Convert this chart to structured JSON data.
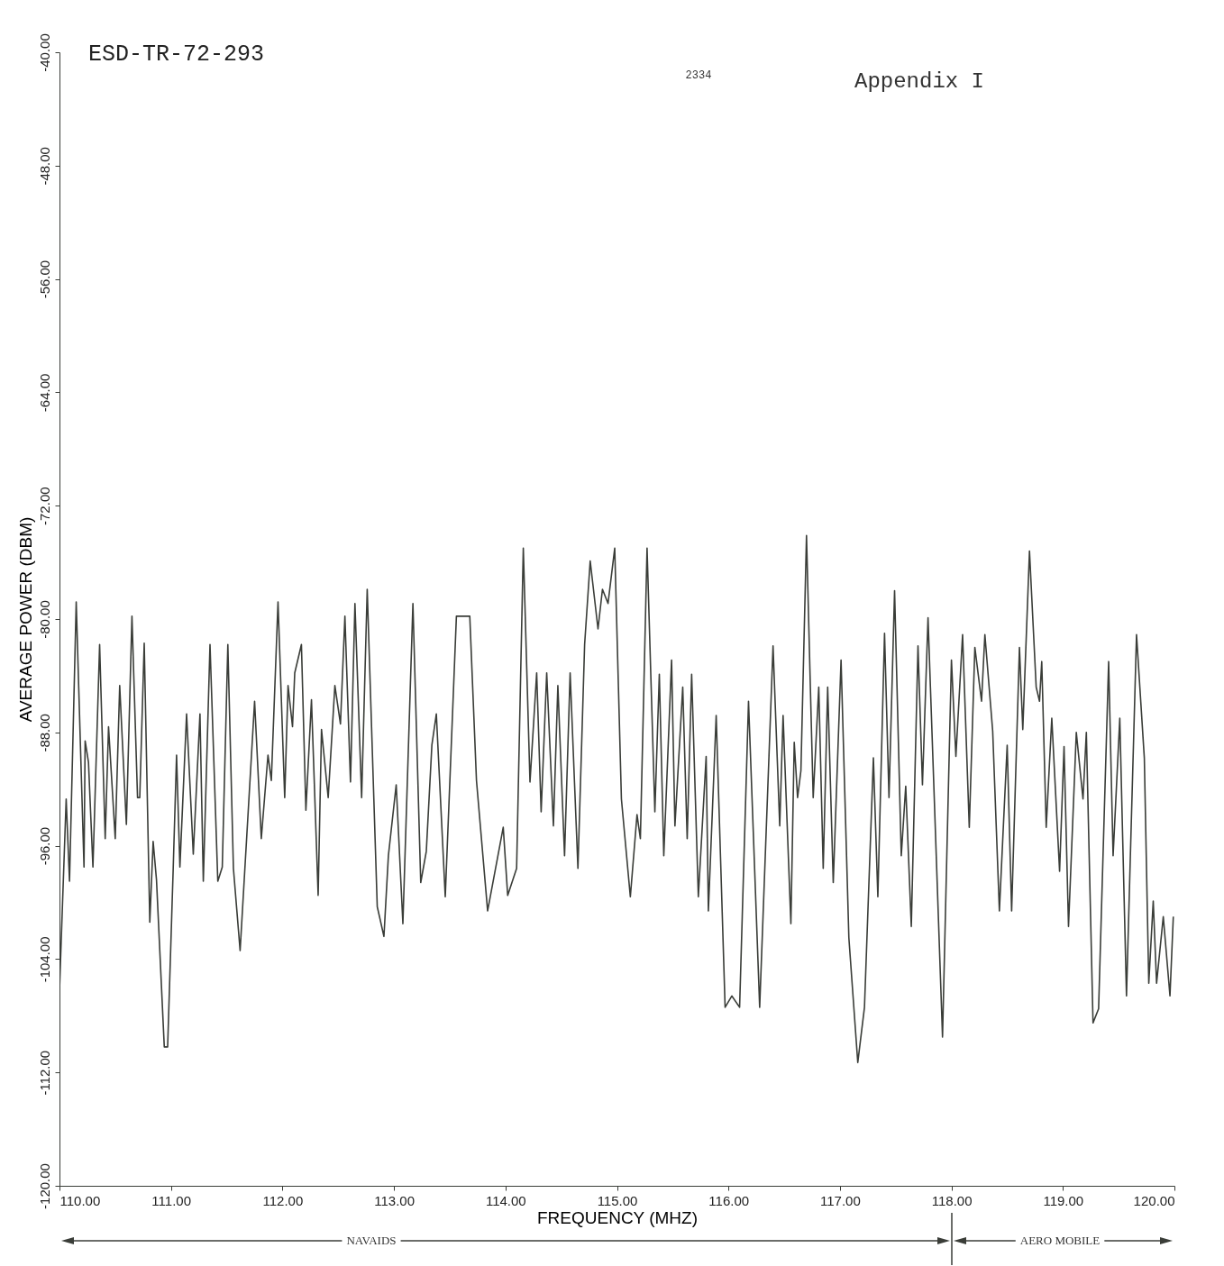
{
  "chart_data": {
    "type": "line",
    "title": "ESD-TR-72-293",
    "xlabel": "FREQUENCY (MHZ)",
    "ylabel": "AVERAGE POWER (DBM)",
    "annotations": [
      "2334",
      "Appendix I",
      "NAVAIDS",
      "AERO MOBILE"
    ],
    "xlim": [
      110,
      120
    ],
    "ylim": [
      -120,
      -40
    ],
    "xticks": [
      {
        "value": 110,
        "label": "110.00"
      },
      {
        "value": 111,
        "label": "111.00"
      },
      {
        "value": 112,
        "label": "112.00"
      },
      {
        "value": 113,
        "label": "113.00"
      },
      {
        "value": 114,
        "label": "114.00"
      },
      {
        "value": 115,
        "label": "115.00"
      },
      {
        "value": 116,
        "label": "116.00"
      },
      {
        "value": 117,
        "label": "117.00"
      },
      {
        "value": 118,
        "label": "118.00"
      },
      {
        "value": 119,
        "label": "119.00"
      },
      {
        "value": 120,
        "label": "120.00"
      }
    ],
    "yticks": [
      {
        "value": -120,
        "label": "-120.00"
      },
      {
        "value": -112,
        "label": "-112.00"
      },
      {
        "value": -104,
        "label": "-104.00"
      },
      {
        "value": -96,
        "label": "-96.00"
      },
      {
        "value": -88,
        "label": "-88.00"
      },
      {
        "value": -80,
        "label": "-80.00"
      },
      {
        "value": -72,
        "label": "-72.00"
      },
      {
        "value": -64,
        "label": "-64.00"
      },
      {
        "value": -56,
        "label": "-56.00"
      },
      {
        "value": -48,
        "label": "-48.00"
      },
      {
        "value": -40,
        "label": "-40.00"
      }
    ],
    "x": [
      110.0,
      110.06,
      110.09,
      110.15,
      110.22,
      110.23,
      110.26,
      110.3,
      110.36,
      110.41,
      110.44,
      110.5,
      110.54,
      110.6,
      110.65,
      110.7,
      110.72,
      110.76,
      110.81,
      110.84,
      110.87,
      110.94,
      110.97,
      111.02,
      111.05,
      111.08,
      111.14,
      111.2,
      111.26,
      111.29,
      111.35,
      111.42,
      111.46,
      111.51,
      111.56,
      111.62,
      111.75,
      111.81,
      111.87,
      111.9,
      111.96,
      112.02,
      112.05,
      112.09,
      112.11,
      112.17,
      112.21,
      112.26,
      112.32,
      112.35,
      112.41,
      112.47,
      112.52,
      112.56,
      112.61,
      112.65,
      112.71,
      112.76,
      112.85,
      112.91,
      112.95,
      113.02,
      113.08,
      113.17,
      113.24,
      113.29,
      113.34,
      113.38,
      113.46,
      113.56,
      113.68,
      113.74,
      113.84,
      113.98,
      114.02,
      114.1,
      114.16,
      114.22,
      114.28,
      114.32,
      114.37,
      114.43,
      114.47,
      114.53,
      114.58,
      114.65,
      114.71,
      114.76,
      114.83,
      114.87,
      114.92,
      114.98,
      115.04,
      115.12,
      115.18,
      115.21,
      115.27,
      115.34,
      115.38,
      115.42,
      115.49,
      115.52,
      115.59,
      115.63,
      115.67,
      115.73,
      115.8,
      115.82,
      115.89,
      115.97,
      116.03,
      116.1,
      116.18,
      116.28,
      116.4,
      116.46,
      116.49,
      116.56,
      116.59,
      116.62,
      116.65,
      116.7,
      116.76,
      116.81,
      116.85,
      116.89,
      116.94,
      117.01,
      117.08,
      117.16,
      117.22,
      117.3,
      117.34,
      117.4,
      117.44,
      117.49,
      117.55,
      117.59,
      117.64,
      117.7,
      117.74,
      117.79,
      117.92,
      118.0,
      118.04,
      118.1,
      118.16,
      118.21,
      118.27,
      118.3,
      118.37,
      118.43,
      118.5,
      118.54,
      118.61,
      118.64,
      118.7,
      118.76,
      118.79,
      118.81,
      118.85,
      118.9,
      118.97,
      119.01,
      119.05,
      119.12,
      119.18,
      119.21,
      119.27,
      119.32,
      119.41,
      119.45,
      119.51,
      119.57,
      119.66,
      119.73,
      119.77,
      119.81,
      119.84,
      119.9,
      119.96,
      119.99
    ],
    "series": [
      {
        "color": "#3a3d38",
        "values": [
          -106.2,
          -92.7,
          -98.5,
          -78.8,
          -97.5,
          -88.6,
          -90.1,
          -97.5,
          -81.8,
          -95.5,
          -87.6,
          -95.5,
          -84.7,
          -94.5,
          -79.8,
          -92.6,
          -92.6,
          -81.7,
          -101.4,
          -95.7,
          -98.4,
          -110.2,
          -110.2,
          -97.6,
          -89.6,
          -97.5,
          -86.7,
          -96.6,
          -86.7,
          -98.5,
          -81.8,
          -98.5,
          -97.5,
          -81.8,
          -97.6,
          -103.4,
          -85.8,
          -95.5,
          -89.6,
          -91.4,
          -78.8,
          -92.6,
          -84.7,
          -87.6,
          -83.8,
          -81.8,
          -93.5,
          -85.7,
          -99.5,
          -87.8,
          -92.6,
          -84.7,
          -87.4,
          -79.8,
          -91.5,
          -78.9,
          -92.6,
          -77.9,
          -100.3,
          -102.4,
          -96.7,
          -91.7,
          -101.5,
          -78.9,
          -98.6,
          -96.4,
          -88.9,
          -86.7,
          -99.6,
          -79.8,
          -79.8,
          -91.4,
          -100.6,
          -94.7,
          -99.5,
          -97.6,
          -75.0,
          -91.5,
          -83.8,
          -93.6,
          -83.8,
          -94.6,
          -84.7,
          -96.7,
          -83.8,
          -97.6,
          -81.8,
          -75.9,
          -80.7,
          -77.9,
          -78.9,
          -75.0,
          -92.7,
          -99.6,
          -93.8,
          -95.5,
          -75.0,
          -93.6,
          -83.9,
          -96.7,
          -82.9,
          -94.6,
          -84.8,
          -95.5,
          -83.9,
          -99.6,
          -89.7,
          -100.6,
          -86.8,
          -107.4,
          -106.6,
          -107.4,
          -85.8,
          -107.4,
          -81.9,
          -94.6,
          -86.8,
          -101.5,
          -88.7,
          -92.6,
          -90.7,
          -74.1,
          -92.6,
          -84.8,
          -97.6,
          -84.8,
          -98.6,
          -82.9,
          -102.5,
          -111.3,
          -107.4,
          -89.8,
          -99.6,
          -81.0,
          -92.6,
          -78.0,
          -96.7,
          -91.8,
          -101.7,
          -81.9,
          -91.7,
          -79.9,
          -109.5,
          -82.9,
          -89.7,
          -81.1,
          -94.7,
          -82.0,
          -85.8,
          -81.1,
          -87.9,
          -100.6,
          -88.9,
          -100.6,
          -82.0,
          -87.8,
          -75.2,
          -84.8,
          -85.8,
          -83.0,
          -94.7,
          -87.0,
          -97.8,
          -89.0,
          -101.7,
          -88.0,
          -92.7,
          -88.0,
          -108.5,
          -107.5,
          -83.0,
          -96.7,
          -87.0,
          -106.6,
          -81.1,
          -89.8,
          -105.7,
          -99.9,
          -105.7,
          -101.0,
          -106.6,
          -101.0
        ]
      }
    ]
  }
}
